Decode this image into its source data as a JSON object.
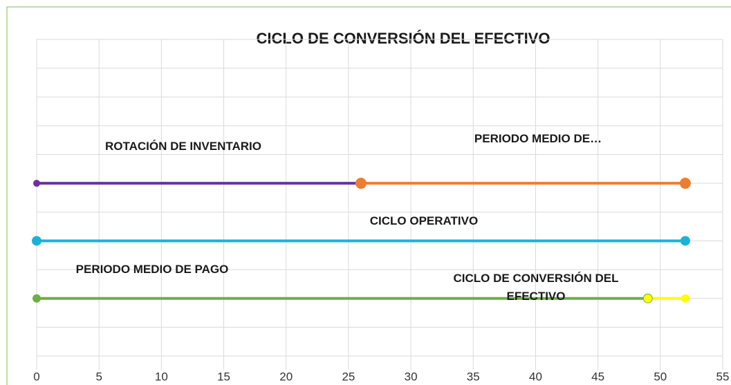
{
  "chart_data": {
    "type": "scatter",
    "title": "CICLO DE CONVERSIÓN DEL EFECTIVO",
    "xlim": [
      0,
      55
    ],
    "xticks": [
      0,
      5,
      10,
      15,
      20,
      25,
      30,
      35,
      40,
      45,
      50,
      55
    ],
    "ylim": [
      0,
      5.5
    ],
    "yticks": [
      0,
      0.5,
      1,
      1.5,
      2,
      2.5,
      3,
      3.5,
      4,
      4.5,
      5,
      5.5
    ],
    "grid": true,
    "series": [
      {
        "name": "ROTACIÓN DE INVENTARIO",
        "color": "#7030a0",
        "x": [
          0,
          26
        ],
        "values": [
          3,
          3
        ]
      },
      {
        "name": "PERIODO MEDIO DE…",
        "color": "#ed7d31",
        "x": [
          26,
          52
        ],
        "values": [
          3,
          3
        ]
      },
      {
        "name": "CICLO OPERATIVO",
        "color": "#1ab2d8",
        "x": [
          0,
          52
        ],
        "values": [
          2,
          2
        ]
      },
      {
        "name": "PERIODO MEDIO DE PAGO",
        "color": "#70ad47",
        "x": [
          0,
          49
        ],
        "values": [
          1,
          1
        ]
      },
      {
        "name": "CICLO DE CONVERSIÓN DEL EFECTIVO",
        "color": "#ffff00",
        "x": [
          49,
          52
        ],
        "values": [
          1,
          1
        ]
      }
    ]
  }
}
